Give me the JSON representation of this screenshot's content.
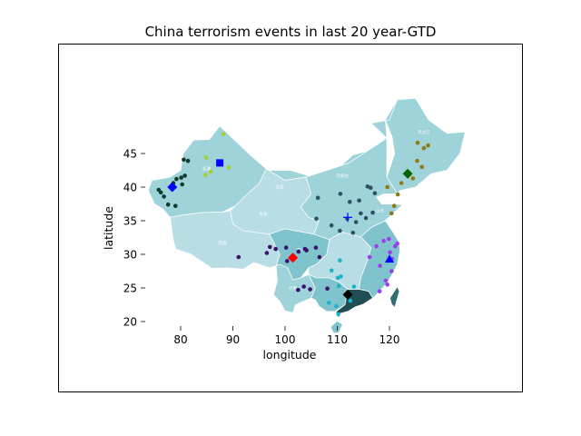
{
  "figure": {
    "title": "China terrorism events in last 20 year-GTD",
    "xlabel": "longitude",
    "ylabel": "latitude"
  },
  "colors": {
    "land_main": "#9fd3da",
    "land_light": "#b8dde4",
    "land_mid": "#7fc4cc",
    "land_dark": "#2f6f74",
    "land_darkest": "#1f4f54",
    "border": "#ffffff"
  },
  "chart_data": {
    "type": "scatter",
    "title": "China terrorism events in last 20 year-GTD",
    "xlabel": "longitude",
    "ylabel": "latitude",
    "xticks": [
      80,
      90,
      100,
      110,
      120
    ],
    "yticks": [
      20,
      25,
      30,
      35,
      40,
      45
    ],
    "xlim": [
      73.5,
      135.5
    ],
    "ylim": [
      9.5,
      53.0
    ],
    "grid": false,
    "legend": "none",
    "province_labels": [
      {
        "text": "黑龙江",
        "lon": 126.6,
        "lat": 48.0
      },
      {
        "text": "内蒙古",
        "lon": 111.0,
        "lat": 41.5
      },
      {
        "text": "新疆",
        "lon": 85.0,
        "lat": 42.5
      },
      {
        "text": "西藏",
        "lon": 88.0,
        "lat": 31.5
      },
      {
        "text": "青海",
        "lon": 95.8,
        "lat": 35.8
      },
      {
        "text": "甘肃",
        "lon": 99.0,
        "lat": 39.8
      },
      {
        "text": "四川",
        "lon": 103.0,
        "lat": 30.5
      },
      {
        "text": "云南",
        "lon": 101.5,
        "lat": 24.8
      },
      {
        "text": "山东",
        "lon": 118.2,
        "lat": 36.3
      },
      {
        "text": "上海",
        "lon": 121.7,
        "lat": 31.3
      }
    ],
    "series": [
      {
        "color": "#0f3b2a",
        "points": [
          [
            75.8,
            39.6
          ],
          [
            76.2,
            39.2
          ],
          [
            76.8,
            38.6
          ],
          [
            77.6,
            37.4
          ],
          [
            79.0,
            37.2
          ],
          [
            79.2,
            41.2
          ],
          [
            80.1,
            41.4
          ],
          [
            80.3,
            40.4
          ],
          [
            80.6,
            44.1
          ],
          [
            81.4,
            43.9
          ],
          [
            78.6,
            40.6
          ],
          [
            80.8,
            41.7
          ]
        ]
      },
      {
        "color": "#a6cc2e",
        "points": [
          [
            84.9,
            44.4
          ],
          [
            84.8,
            41.8
          ],
          [
            85.8,
            42.3
          ],
          [
            89.2,
            42.9
          ],
          [
            87.6,
            43.8
          ],
          [
            88.2,
            47.9
          ]
        ]
      },
      {
        "color": "#3b0f6e",
        "points": [
          [
            91.1,
            29.6
          ],
          [
            96.5,
            30.2
          ],
          [
            97.1,
            31.1
          ],
          [
            100.2,
            31.0
          ],
          [
            102.6,
            30.4
          ],
          [
            103.8,
            30.8
          ],
          [
            104.1,
            30.6
          ],
          [
            106.6,
            29.6
          ],
          [
            104.8,
            24.8
          ],
          [
            102.5,
            24.7
          ],
          [
            103.6,
            25.2
          ],
          [
            108.1,
            24.9
          ],
          [
            100.4,
            29.0
          ],
          [
            98.2,
            30.8
          ],
          [
            105.9,
            31.0
          ]
        ]
      },
      {
        "color": "#2f4f64",
        "points": [
          [
            106.3,
            38.4
          ],
          [
            108.9,
            34.3
          ],
          [
            110.6,
            39.0
          ],
          [
            112.4,
            37.8
          ],
          [
            113.6,
            34.8
          ],
          [
            114.5,
            36.1
          ],
          [
            116.4,
            39.9
          ],
          [
            117.2,
            39.1
          ],
          [
            114.2,
            38.0
          ],
          [
            115.5,
            35.4
          ],
          [
            111.9,
            35.3
          ],
          [
            113.0,
            33.2
          ],
          [
            110.5,
            33.5
          ],
          [
            116.8,
            36.2
          ],
          [
            106.0,
            35.3
          ],
          [
            115.8,
            40.1
          ]
        ]
      },
      {
        "color": "#1bb3c8",
        "points": [
          [
            108.4,
            22.8
          ],
          [
            110.3,
            25.3
          ],
          [
            110.7,
            26.7
          ],
          [
            110.2,
            21.1
          ],
          [
            109.8,
            22.3
          ],
          [
            112.5,
            23.1
          ],
          [
            108.9,
            27.6
          ],
          [
            110.5,
            29.1
          ],
          [
            113.2,
            25.2
          ],
          [
            110.1,
            26.5
          ]
        ]
      },
      {
        "color": "#9b3cf0",
        "points": [
          [
            119.3,
            26.1
          ],
          [
            118.1,
            24.5
          ],
          [
            119.6,
            25.5
          ],
          [
            120.1,
            30.3
          ],
          [
            121.1,
            31.2
          ],
          [
            121.5,
            31.6
          ],
          [
            117.5,
            31.2
          ],
          [
            118.2,
            28.3
          ],
          [
            119.9,
            32.3
          ],
          [
            120.5,
            29.3
          ],
          [
            118.9,
            32.0
          ],
          [
            120.4,
            27.5
          ],
          [
            116.2,
            29.6
          ]
        ]
      },
      {
        "color": "#8f7a14",
        "points": [
          [
            123.4,
            41.8
          ],
          [
            124.5,
            41.3
          ],
          [
            125.3,
            43.9
          ],
          [
            126.6,
            45.8
          ],
          [
            125.4,
            46.6
          ],
          [
            127.4,
            46.2
          ],
          [
            122.3,
            40.6
          ],
          [
            121.6,
            38.9
          ],
          [
            120.4,
            36.1
          ],
          [
            120.9,
            37.2
          ],
          [
            119.6,
            40.0
          ],
          [
            126.2,
            43.0
          ]
        ]
      }
    ],
    "markers": [
      {
        "shape": "diamond",
        "color": "#0000ff",
        "lon": 78.4,
        "lat": 40.0
      },
      {
        "shape": "square",
        "color": "#0000ff",
        "lon": 87.5,
        "lat": 43.6
      },
      {
        "shape": "diamond",
        "color": "#ff0000",
        "lon": 101.5,
        "lat": 29.5
      },
      {
        "shape": "plus",
        "color": "#0000ff",
        "lon": 112.0,
        "lat": 35.5
      },
      {
        "shape": "diamond",
        "color": "#000000",
        "lon": 112.0,
        "lat": 24.0
      },
      {
        "shape": "triangle",
        "color": "#0000ff",
        "lon": 120.0,
        "lat": 29.3
      },
      {
        "shape": "diamond",
        "color": "#006400",
        "lon": 123.5,
        "lat": 42.0
      }
    ]
  }
}
